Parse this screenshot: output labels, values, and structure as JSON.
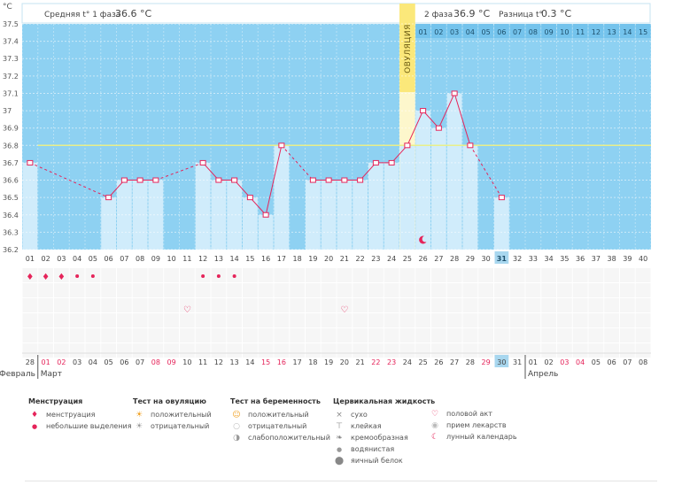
{
  "header": {
    "phase1_text": "Средняя t° 1 фаза",
    "phase1_value": "36.6 °C",
    "phase2_text": "2 фаза",
    "phase2_value": "36.9 °C",
    "diff_text": "Разница t°",
    "diff_value": "0.3 °C"
  },
  "ovulation_label": "ОВУЛЯЦИЯ",
  "colors": {
    "plot_bg": "#8ed1f2",
    "bar": "#d0ecfb",
    "line": "#e5245a",
    "coverline": "#e9ef8a",
    "ovulation_band": "#fbe87a",
    "ovulation_band_light": "#fdf7cc",
    "accent_day_box": "#a8d7ef"
  },
  "chart_data": {
    "type": "bar",
    "title": "",
    "ylabel": "°C",
    "xlabel": "",
    "ylim": [
      36.2,
      37.5
    ],
    "yticks": [
      "36.2",
      "36.3",
      "36.4",
      "36.5",
      "36.6",
      "36.7",
      "36.8",
      "36.9",
      "37",
      "37.1",
      "37.2",
      "37.3",
      "37.4",
      "37.5"
    ],
    "cycle_days": [
      "01",
      "02",
      "03",
      "04",
      "05",
      "06",
      "07",
      "08",
      "09",
      "10",
      "11",
      "12",
      "13",
      "14",
      "15",
      "16",
      "17",
      "18",
      "19",
      "20",
      "21",
      "22",
      "23",
      "24",
      "25",
      "26",
      "27",
      "28",
      "29",
      "30",
      "31",
      "32",
      "33",
      "34",
      "35",
      "36",
      "37",
      "38",
      "39",
      "40"
    ],
    "phase2_day_labels": [
      "01",
      "02",
      "03",
      "04",
      "05",
      "06",
      "07",
      "08",
      "09",
      "10",
      "11",
      "12",
      "13",
      "14",
      "15"
    ],
    "temperatures": [
      36.7,
      null,
      null,
      null,
      null,
      36.5,
      36.6,
      36.6,
      36.6,
      null,
      null,
      36.7,
      36.6,
      36.6,
      36.5,
      36.4,
      36.8,
      null,
      36.6,
      36.6,
      36.6,
      36.6,
      36.7,
      36.7,
      36.8,
      37.0,
      36.9,
      37.1,
      36.8,
      null,
      36.5,
      null,
      null,
      null,
      null,
      null,
      null,
      null,
      null,
      null
    ],
    "coverline": 36.8,
    "ovulation_day": "25",
    "current_day": "31",
    "calendar_dates": [
      "28",
      "01",
      "02",
      "03",
      "04",
      "05",
      "06",
      "07",
      "08",
      "09",
      "10",
      "11",
      "12",
      "13",
      "14",
      "15",
      "16",
      "17",
      "18",
      "19",
      "20",
      "21",
      "22",
      "23",
      "24",
      "25",
      "26",
      "27",
      "28",
      "29",
      "30",
      "31",
      "01",
      "02",
      "03",
      "04",
      "05",
      "06",
      "07",
      "08"
    ],
    "calendar_red_dates_index": [
      1,
      2,
      8,
      9,
      15,
      16,
      22,
      23,
      29,
      34,
      35
    ],
    "calendar_highlight_index": 30,
    "months": [
      "Февраль",
      "Март",
      "Апрель"
    ],
    "grid": true
  },
  "markers": {
    "menstruation_heavy_days": [
      "01",
      "02",
      "03"
    ],
    "menstruation_light_days": [
      "04",
      "05",
      "12",
      "13",
      "14"
    ],
    "intercourse_days": [
      "12",
      "22"
    ],
    "lunar_day": "26"
  },
  "legend": {
    "groups": [
      {
        "title": "Менструация",
        "items": [
          {
            "icon": "drop-heavy-icon",
            "label": "менструация"
          },
          {
            "icon": "drop-light-icon",
            "label": "небольшие выделения"
          }
        ]
      },
      {
        "title": "Тест на овуляцию",
        "items": [
          {
            "icon": "sun-positive-icon",
            "label": "положительный"
          },
          {
            "icon": "sun-negative-icon",
            "label": "отрицательный"
          }
        ]
      },
      {
        "title": "Тест на беременность",
        "items": [
          {
            "icon": "smile-positive-icon",
            "label": "положительный"
          },
          {
            "icon": "circle-negative-icon",
            "label": "отрицательный"
          },
          {
            "icon": "circle-weak-icon",
            "label": "слабоположительный"
          }
        ]
      },
      {
        "title": "Цервикальная жидкость",
        "items": [
          {
            "icon": "cross-icon",
            "label": "сухо"
          },
          {
            "icon": "sticky-icon",
            "label": "клейкая"
          },
          {
            "icon": "creamy-icon",
            "label": "кремообразная"
          },
          {
            "icon": "watery-icon",
            "label": "водянистая"
          },
          {
            "icon": "egg-white-icon",
            "label": "яичный белок"
          }
        ]
      },
      {
        "title": "",
        "items": [
          {
            "icon": "heart-icon",
            "label": "половой акт"
          },
          {
            "icon": "pill-icon",
            "label": "прием лекарств"
          },
          {
            "icon": "moon-icon",
            "label": "лунный календарь"
          }
        ]
      }
    ]
  }
}
